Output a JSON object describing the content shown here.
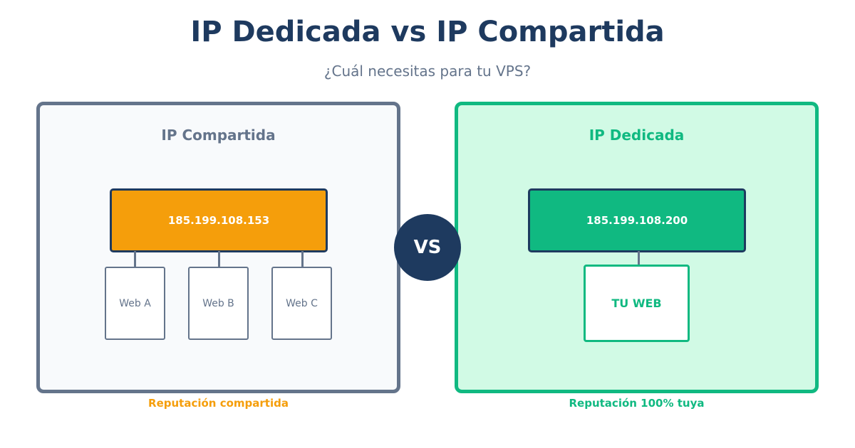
{
  "header": {
    "title": "IP Dedicada vs IP Compartida",
    "subtitle": "¿Cuál necesitas para tu VPS?"
  },
  "shared": {
    "title": "IP Compartida",
    "ip": "185.199.108.153",
    "sites": [
      "Web A",
      "Web B",
      "Web C"
    ],
    "caption": "Reputación compartida"
  },
  "dedicated": {
    "title": "IP Dedicada",
    "ip": "185.199.108.200",
    "site": "TU WEB",
    "caption": "Reputación 100% tuya"
  },
  "vs_label": "VS",
  "colors": {
    "navy": "#1e3a5f",
    "slate": "#64748b",
    "orange": "#f59e0b",
    "green": "#10b981",
    "mint": "#d1fae5"
  }
}
